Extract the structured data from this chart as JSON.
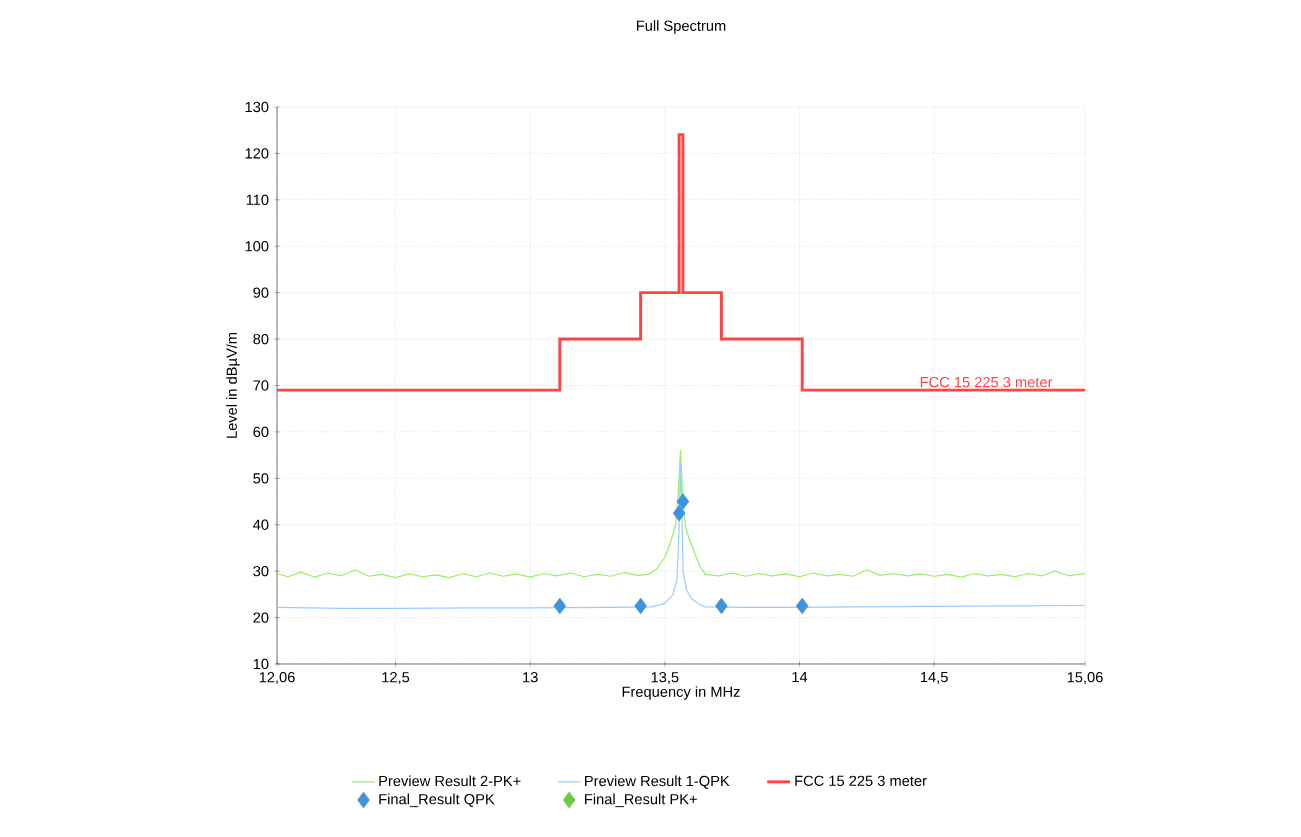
{
  "chart_data": {
    "type": "line",
    "title": "Full Spectrum",
    "xlabel": "Frequency in MHz",
    "ylabel": "Level in dBµV/m",
    "xlim": [
      12.06,
      15.06
    ],
    "ylim": [
      10,
      130
    ],
    "xticks": [
      {
        "value": 12.06,
        "label": "12,06"
      },
      {
        "value": 12.5,
        "label": "12,5"
      },
      13,
      {
        "value": 13.5,
        "label": "13,5"
      },
      14,
      {
        "value": 14.5,
        "label": "14,5"
      },
      {
        "value": 15.06,
        "label": "15,06"
      }
    ],
    "yticks": [
      10,
      20,
      30,
      40,
      50,
      60,
      70,
      80,
      90,
      100,
      110,
      120,
      130
    ],
    "grid": true,
    "legend": "bottom",
    "annotations": [
      {
        "text": "FCC 15 225 3 meter",
        "x": 14.44,
        "y": 69
      }
    ],
    "series": [
      {
        "name": "Preview Result 2-PK+",
        "color": "#99ee66",
        "x": [
          12.06,
          12.1,
          12.15,
          12.2,
          12.25,
          12.3,
          12.35,
          12.4,
          12.45,
          12.5,
          12.55,
          12.6,
          12.65,
          12.7,
          12.75,
          12.8,
          12.85,
          12.9,
          12.95,
          13.0,
          13.05,
          13.1,
          13.15,
          13.2,
          13.25,
          13.3,
          13.35,
          13.4,
          13.44,
          13.47,
          13.5,
          13.52,
          13.54,
          13.55,
          13.558,
          13.565,
          13.575,
          13.59,
          13.61,
          13.63,
          13.65,
          13.7,
          13.75,
          13.8,
          13.85,
          13.9,
          13.95,
          14.0,
          14.05,
          14.1,
          14.15,
          14.2,
          14.25,
          14.3,
          14.35,
          14.4,
          14.45,
          14.5,
          14.55,
          14.6,
          14.65,
          14.7,
          14.75,
          14.8,
          14.85,
          14.9,
          14.95,
          15.0,
          15.06
        ],
        "values": [
          29.5,
          28.8,
          29.8,
          28.7,
          29.6,
          29.0,
          30.3,
          28.9,
          29.3,
          28.6,
          29.4,
          28.8,
          29.2,
          28.6,
          29.5,
          28.8,
          29.6,
          28.9,
          29.4,
          28.7,
          29.5,
          29.0,
          29.6,
          28.8,
          29.3,
          28.9,
          29.7,
          29.1,
          29.3,
          30.5,
          33,
          36,
          40,
          47,
          56,
          48,
          40,
          37,
          34,
          31,
          29.3,
          29.0,
          29.6,
          28.9,
          29.5,
          29.0,
          29.4,
          28.8,
          29.6,
          29.0,
          29.3,
          28.9,
          30.3,
          29.1,
          29.5,
          29.0,
          29.4,
          28.9,
          29.3,
          28.7,
          29.5,
          29.0,
          29.3,
          28.8,
          29.5,
          29.0,
          30.0,
          29.0,
          29.5
        ]
      },
      {
        "name": "Preview Result 1-QPK",
        "color": "#99ccff",
        "x": [
          12.06,
          12.3,
          12.5,
          12.8,
          13.0,
          13.3,
          13.45,
          13.5,
          13.53,
          13.545,
          13.553,
          13.558,
          13.562,
          13.568,
          13.58,
          13.6,
          13.63,
          13.65,
          13.8,
          14.0,
          14.2,
          14.5,
          14.8,
          15.06
        ],
        "values": [
          22.2,
          22.0,
          22.0,
          22.1,
          22.1,
          22.2,
          22.3,
          23,
          25,
          28,
          40,
          53,
          45,
          30,
          26,
          24,
          22.8,
          22.3,
          22.2,
          22.2,
          22.3,
          22.4,
          22.5,
          22.6
        ]
      },
      {
        "name": "FCC 15 225 3 meter",
        "type": "step",
        "color": "#ff4444",
        "x": [
          12.06,
          13.11,
          13.41,
          13.553,
          13.567,
          13.71,
          14.01,
          15.06
        ],
        "values": [
          69,
          80,
          90,
          124,
          90,
          80,
          69,
          69
        ]
      },
      {
        "name": "Final_Result QPK",
        "type": "scatter",
        "marker": "diamond",
        "color": "#3d94dc",
        "x": [
          13.11,
          13.41,
          13.553,
          13.567,
          13.71,
          14.01
        ],
        "values": [
          22.5,
          22.5,
          42.5,
          45,
          22.5,
          22.5
        ]
      },
      {
        "name": "Final_Result PK+",
        "type": "scatter",
        "marker": "diamond",
        "color": "#66cc44"
      }
    ]
  }
}
